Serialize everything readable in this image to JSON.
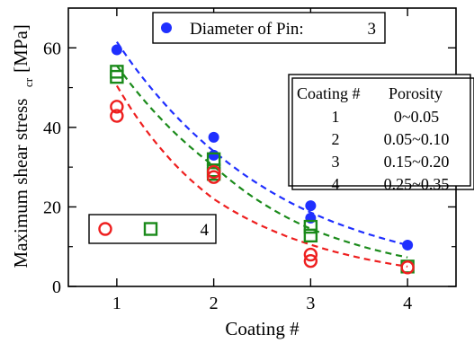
{
  "chart_data": {
    "type": "scatter",
    "xlabel": "Coating #",
    "ylabel": "Maximum shear stress",
    "ylabel_subscript": "cr",
    "ylabel_unit": "[MPa]",
    "xlim": [
      0.5,
      4.5
    ],
    "ylim": [
      0,
      70
    ],
    "x_ticks": [
      1,
      2,
      3,
      4
    ],
    "y_ticks": [
      0,
      20,
      40,
      60
    ],
    "series": [
      {
        "name": "Diameter of Pin:",
        "pin": "3",
        "marker": "filled-circle",
        "color": "#1f2fff",
        "points": [
          [
            1,
            59.5
          ],
          [
            2,
            37.5
          ],
          [
            2,
            33
          ],
          [
            3,
            20.3
          ],
          [
            3,
            17.2
          ],
          [
            4,
            10.4
          ]
        ],
        "fit": [
          [
            1,
            61.5
          ],
          [
            2,
            34
          ],
          [
            3,
            18.6
          ],
          [
            4,
            10.4
          ]
        ]
      },
      {
        "name": "",
        "pin": "",
        "marker": "open-square",
        "color": "#1a8a1a",
        "points": [
          [
            1,
            54
          ],
          [
            1,
            52.7
          ],
          [
            2,
            32
          ],
          [
            2,
            29.2
          ],
          [
            2,
            28.3
          ],
          [
            3,
            15
          ],
          [
            3,
            12.8
          ],
          [
            4,
            5
          ]
        ],
        "fit": [
          [
            1,
            55.5
          ],
          [
            2,
            30.3
          ],
          [
            3,
            14.5
          ],
          [
            4,
            7.3
          ]
        ]
      },
      {
        "name": "",
        "pin": "4",
        "marker": "open-circle",
        "color": "#ee1f1f",
        "points": [
          [
            1,
            45.2
          ],
          [
            1,
            42.9
          ],
          [
            2,
            28.8
          ],
          [
            2,
            27.5
          ],
          [
            3,
            8
          ],
          [
            3,
            6.4
          ],
          [
            4,
            4.8
          ]
        ],
        "fit": [
          [
            1,
            50.5
          ],
          [
            2,
            22
          ],
          [
            3,
            10.5
          ],
          [
            4,
            5
          ]
        ]
      }
    ],
    "legend_top": {
      "label": "Diameter of Pin:",
      "value": "3",
      "position": "top-center"
    },
    "legend_bottom": {
      "value": "4",
      "position": "bottom-left"
    },
    "table": {
      "position": "right",
      "headers": [
        "Coating #",
        "Porosity"
      ],
      "rows": [
        [
          "1",
          "0~0.05"
        ],
        [
          "2",
          "0.05~0.10"
        ],
        [
          "3",
          "0.15~0.20"
        ],
        [
          "4",
          "0.25~0.35"
        ]
      ]
    }
  }
}
